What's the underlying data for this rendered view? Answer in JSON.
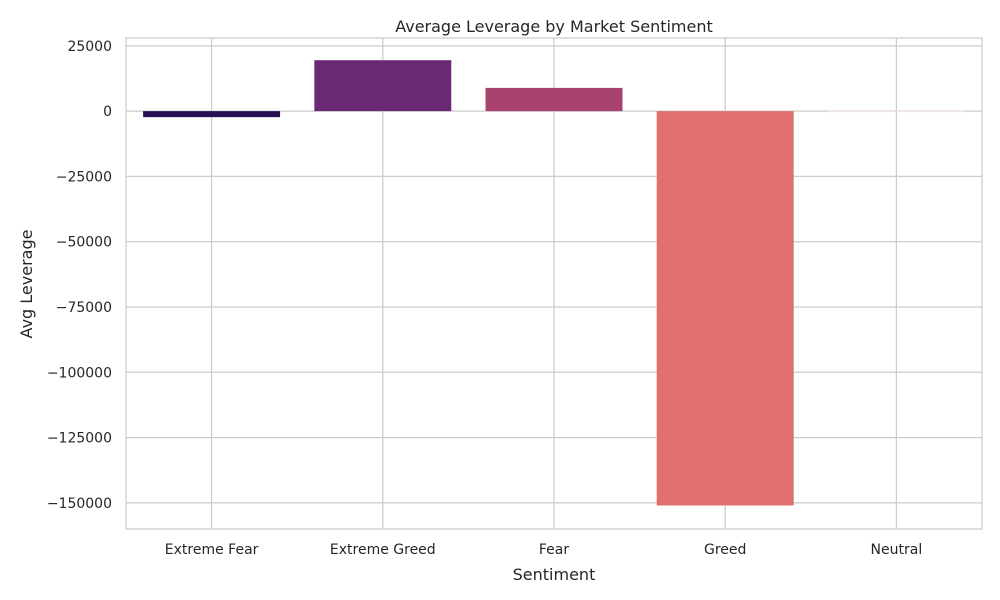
{
  "chart_data": {
    "type": "bar",
    "title": "Average Leverage by Market Sentiment",
    "xlabel": "Sentiment",
    "ylabel": "Avg Leverage",
    "categories": [
      "Extreme Fear",
      "Extreme Greed",
      "Fear",
      "Greed",
      "Neutral"
    ],
    "values": [
      -2300,
      19500,
      8900,
      -151000,
      -400
    ],
    "colors": [
      "#2a0f54",
      "#6a2875",
      "#a8436f",
      "#e0706d",
      "#fde9e0"
    ],
    "ylim": [
      -160000,
      28000
    ],
    "yticks": [
      25000,
      0,
      -25000,
      -50000,
      -75000,
      -100000,
      -125000,
      -150000
    ],
    "ytick_labels": [
      "25000",
      "0",
      "−25000",
      "−50000",
      "−75000",
      "−100000",
      "−125000",
      "−150000"
    ],
    "grid": true,
    "legend": "none"
  }
}
